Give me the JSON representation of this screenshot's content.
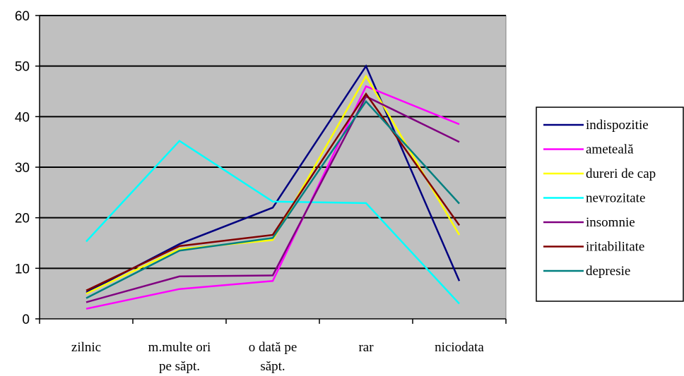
{
  "chart_data": {
    "type": "line",
    "categories": [
      [
        "zilnic"
      ],
      [
        "m.multe ori",
        "pe săpt."
      ],
      [
        "o dată pe",
        "săpt."
      ],
      [
        "rar"
      ],
      [
        "niciodata"
      ]
    ],
    "ylim": [
      0,
      60
    ],
    "yticks": [
      "0",
      "10",
      "20",
      "30",
      "40",
      "50",
      "60"
    ],
    "grid": true,
    "plot_background": "#c0c0c0",
    "legend_position": "right",
    "series": [
      {
        "name": "indispozitie",
        "color": "#000080",
        "values": [
          5.2,
          14.8,
          22.0,
          50.0,
          7.5
        ]
      },
      {
        "name": "ameteală",
        "color": "#ff00ff",
        "values": [
          2.0,
          5.9,
          7.5,
          46.0,
          38.5
        ]
      },
      {
        "name": "dureri de cap",
        "color": "#ffff00",
        "values": [
          5.0,
          13.8,
          15.6,
          48.0,
          16.6
        ]
      },
      {
        "name": "nevrozitate",
        "color": "#00ffff",
        "values": [
          15.3,
          35.2,
          23.2,
          22.9,
          3.0
        ]
      },
      {
        "name": "insomnie",
        "color": "#800080",
        "values": [
          3.3,
          8.4,
          8.6,
          44.0,
          35.0
        ]
      },
      {
        "name": "iritabilitate",
        "color": "#800000",
        "values": [
          5.6,
          14.4,
          16.6,
          44.5,
          18.5
        ]
      },
      {
        "name": "depresie",
        "color": "#008080",
        "values": [
          4.1,
          13.5,
          16.0,
          43.0,
          22.8
        ]
      }
    ]
  }
}
